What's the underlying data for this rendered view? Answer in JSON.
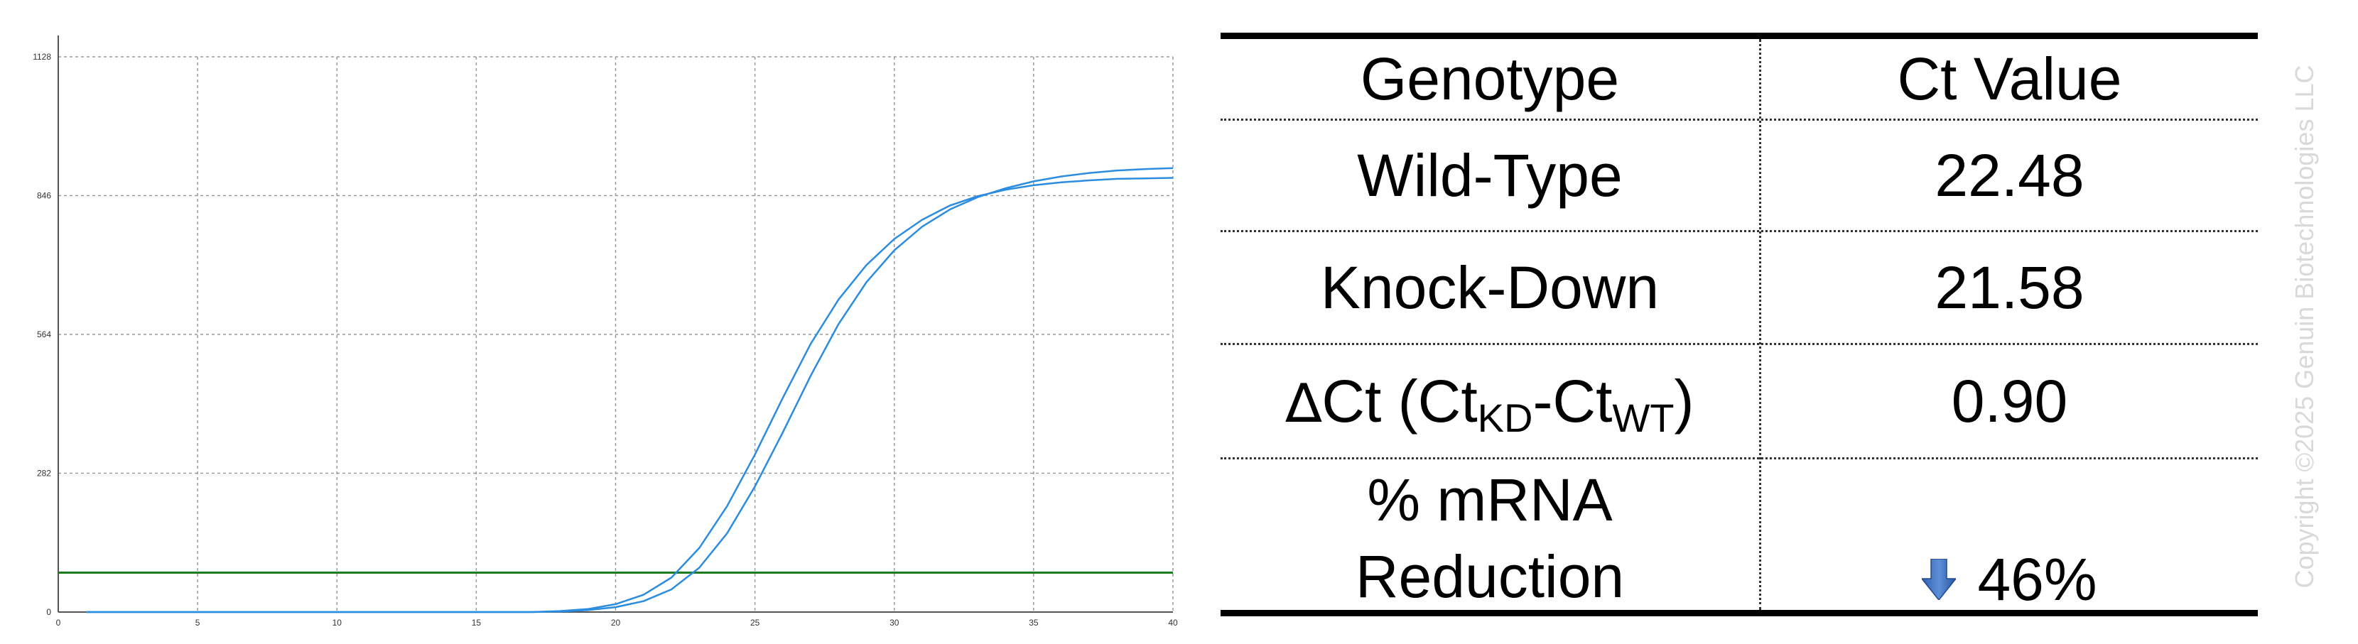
{
  "chart_data": {
    "type": "line",
    "title": "",
    "xlabel": "",
    "ylabel": "",
    "xlim": [
      0,
      40
    ],
    "ylim": [
      0,
      1128
    ],
    "x_ticks": [
      "0",
      "5",
      "10",
      "15",
      "20",
      "25",
      "30",
      "35",
      "40"
    ],
    "y_ticks": [
      "0",
      "282",
      "564",
      "846",
      "1128"
    ],
    "grid": true,
    "threshold": {
      "y": 80,
      "color": "#1e7a1e"
    },
    "series": [
      {
        "color": "#2b8ce0",
        "points": [
          [
            1,
            0
          ],
          [
            15,
            0
          ],
          [
            17,
            0
          ],
          [
            18,
            2
          ],
          [
            19,
            6
          ],
          [
            20,
            16
          ],
          [
            21,
            35
          ],
          [
            22,
            70
          ],
          [
            23,
            130
          ],
          [
            24,
            215
          ],
          [
            25,
            320
          ],
          [
            26,
            435
          ],
          [
            27,
            545
          ],
          [
            28,
            635
          ],
          [
            29,
            705
          ],
          [
            30,
            758
          ],
          [
            31,
            797
          ],
          [
            32,
            826
          ],
          [
            33,
            845
          ],
          [
            34,
            858
          ],
          [
            35,
            867
          ],
          [
            36,
            873
          ],
          [
            37,
            877
          ],
          [
            38,
            880
          ],
          [
            39,
            881
          ],
          [
            40,
            882
          ]
        ]
      },
      {
        "color": "#2b8ce0",
        "points": [
          [
            1,
            0
          ],
          [
            15,
            0
          ],
          [
            17,
            0
          ],
          [
            18,
            1
          ],
          [
            19,
            4
          ],
          [
            20,
            10
          ],
          [
            21,
            22
          ],
          [
            22,
            46
          ],
          [
            23,
            90
          ],
          [
            24,
            160
          ],
          [
            25,
            255
          ],
          [
            26,
            365
          ],
          [
            27,
            480
          ],
          [
            28,
            585
          ],
          [
            29,
            670
          ],
          [
            30,
            735
          ],
          [
            31,
            783
          ],
          [
            32,
            818
          ],
          [
            33,
            843
          ],
          [
            34,
            861
          ],
          [
            35,
            875
          ],
          [
            36,
            885
          ],
          [
            37,
            892
          ],
          [
            38,
            897
          ],
          [
            39,
            900
          ],
          [
            40,
            902
          ]
        ]
      }
    ]
  },
  "table": {
    "headers": {
      "genotype": "Genotype",
      "ct_value": "Ct Value"
    },
    "rows": {
      "wild_type": {
        "label": "Wild-Type",
        "value": "22.48"
      },
      "knock_down": {
        "label": "Knock-Down",
        "value": "21.58"
      },
      "delta_ct": {
        "delta": "∆",
        "label_a": "Ct (Ct",
        "sub_a": "KD",
        "label_b": "-Ct",
        "sub_b": "WT",
        "label_c": ")",
        "value": "0.90"
      },
      "reduction": {
        "label_line1": "% mRNA",
        "label_line2": "Reduction",
        "value": "46%",
        "icon": "arrow-down-icon"
      }
    }
  },
  "watermark": "Copyright ©2025 Genuin Biotechnologies LLC"
}
